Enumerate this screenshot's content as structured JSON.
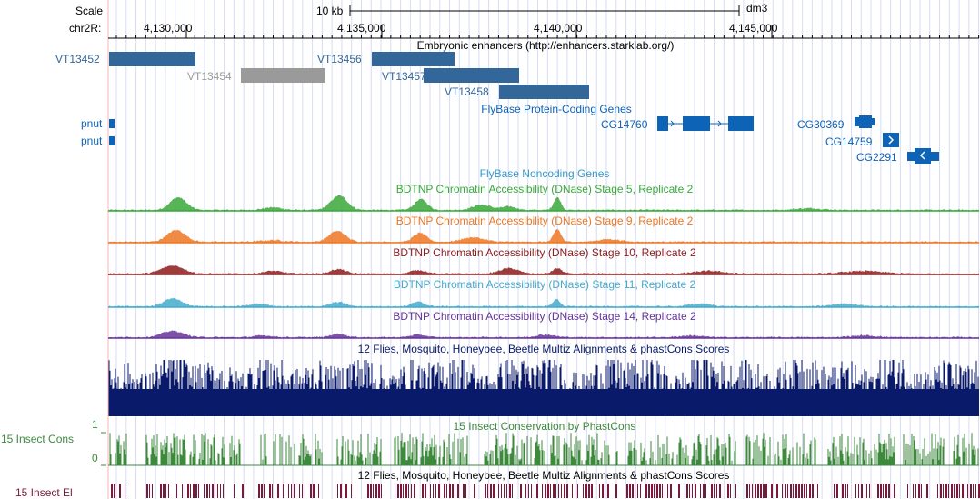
{
  "ruler": {
    "scale_label": "Scale",
    "scale_value": "10 kb",
    "assembly": "dm3",
    "chrom_label": "chr2R:",
    "positions": [
      "4,130,000",
      "4,135,000",
      "4,140,000",
      "4,145,000"
    ]
  },
  "tracks": {
    "enhancers": {
      "title": "Embryonic enhancers (http://enhancers.starklab.org/)",
      "color": "#336699",
      "gray_color": "#9a9a9a",
      "items": [
        {
          "name": "VT13452"
        },
        {
          "name": "VT13454"
        },
        {
          "name": "VT13456"
        },
        {
          "name": "VT13457"
        },
        {
          "name": "VT13458"
        }
      ]
    },
    "genes": {
      "title": "FlyBase Protein-Coding Genes",
      "color": "#0d63b5",
      "items": [
        {
          "name": "pnut"
        },
        {
          "name": "pnut"
        },
        {
          "name": "CG14760"
        },
        {
          "name": "CG30369"
        },
        {
          "name": "CG14759"
        },
        {
          "name": "CG2291"
        }
      ]
    },
    "noncoding": {
      "title": "FlyBase Noncoding Genes",
      "color": "#3399cc"
    },
    "dnase": [
      {
        "title": "BDTNP Chromatin Accessibility (DNase) Stage 5, Replicate 2",
        "color": "#3aa83a"
      },
      {
        "title": "BDTNP Chromatin Accessibility (DNase) Stage 9, Replicate 2",
        "color": "#ee7722"
      },
      {
        "title": "BDTNP Chromatin Accessibility (DNase) Stage 10, Replicate 2",
        "color": "#8b1a1a"
      },
      {
        "title": "BDTNP Chromatin Accessibility (DNase) Stage 11, Replicate 2",
        "color": "#44aacc"
      },
      {
        "title": "BDTNP Chromatin Accessibility (DNase) Stage 14, Replicate 2",
        "color": "#663399"
      }
    ],
    "multiz": {
      "title": "12 Flies, Mosquito, Honeybee, Beetle Multiz Alignments & phastCons Scores",
      "color": "#0a1a6b"
    },
    "phastcons": {
      "title": "15 Insect Conservation by PhastCons",
      "left_label": "15 Insect Cons",
      "axis_max": "1",
      "axis_min": "0",
      "color": "#3d8a3d"
    },
    "elements": {
      "title": "12 Flies, Mosquito, Honeybee, Beetle Multiz Alignments & phastCons Scores",
      "left_label": "15 Insect El",
      "color": "#7a1a3a"
    }
  }
}
